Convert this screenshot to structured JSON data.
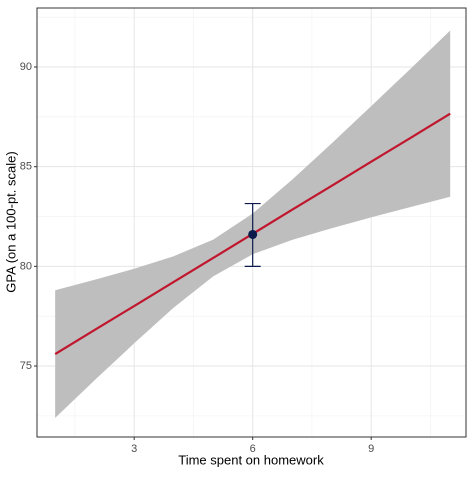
{
  "chart_data": {
    "type": "ribbon-line",
    "x_label": "Time spent on homework",
    "y_label": "GPA (on a 100-pt. scale)",
    "x": [
      1,
      2,
      3,
      4,
      5,
      6,
      7,
      8,
      9,
      10,
      11
    ],
    "series": [
      {
        "name": "fit",
        "color": "#c0172e",
        "values": [
          75.6,
          76.81,
          78.01,
          79.22,
          80.42,
          81.63,
          82.84,
          84.04,
          85.25,
          86.45,
          87.66
        ]
      },
      {
        "name": "upper",
        "color": "#bebebe",
        "values": [
          78.8,
          79.33,
          79.88,
          80.51,
          81.34,
          82.65,
          84.35,
          86.17,
          88.04,
          89.92,
          91.83
        ]
      },
      {
        "name": "lower",
        "color": "#bebebe",
        "values": [
          72.4,
          74.29,
          76.14,
          77.93,
          79.5,
          80.61,
          81.33,
          81.91,
          82.46,
          82.98,
          83.49
        ]
      }
    ],
    "point": {
      "x": 6,
      "y": 81.6,
      "ymin": 80,
      "ymax": 83.15,
      "color": "#0b1a4d"
    },
    "xlim": [
      0.54,
      11.4
    ],
    "xticks": [
      3,
      6,
      9
    ],
    "ylim": [
      71.44,
      92.96
    ],
    "yticks": [
      75,
      80,
      85,
      90
    ],
    "grid": true
  }
}
